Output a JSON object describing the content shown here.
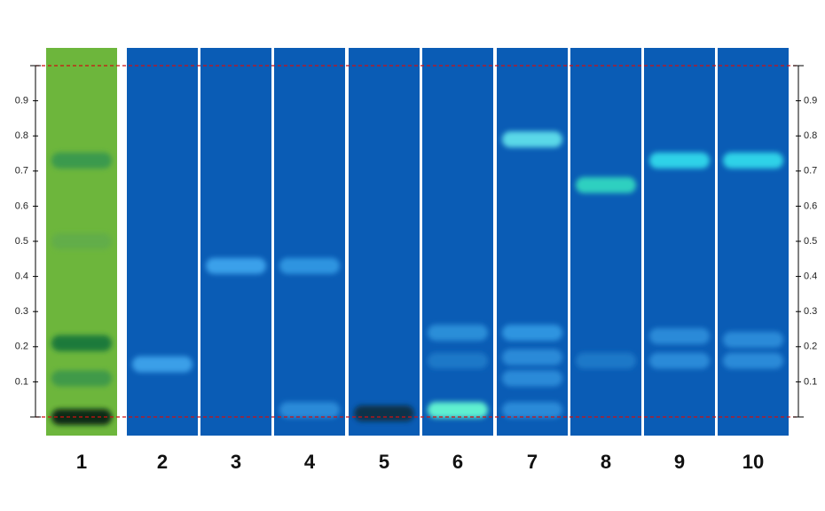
{
  "plate": {
    "ylim": [
      0,
      1
    ],
    "ticks": [
      0.1,
      0.2,
      0.3,
      0.4,
      0.5,
      0.6,
      0.7,
      0.8,
      0.9
    ],
    "lanes": [
      {
        "label": "1",
        "color": "#6db63c",
        "bands": [
          {
            "rf": 0.0,
            "color": "#0b2a12"
          },
          {
            "rf": 0.11,
            "color": "#3f9a4a"
          },
          {
            "rf": 0.21,
            "color": "#1a7a3a"
          },
          {
            "rf": 0.5,
            "color": "#62ad4a"
          },
          {
            "rf": 0.73,
            "color": "#3a9a4e"
          }
        ]
      },
      {
        "label": "2",
        "color": "#0a5cb5",
        "bands": [
          {
            "rf": 0.15,
            "color": "#3a9fe8"
          }
        ]
      },
      {
        "label": "3",
        "color": "#0a5cb5",
        "bands": [
          {
            "rf": 0.43,
            "color": "#3aa0ea"
          }
        ]
      },
      {
        "label": "4",
        "color": "#0a5cb5",
        "bands": [
          {
            "rf": 0.43,
            "color": "#2f94e0"
          },
          {
            "rf": 0.02,
            "color": "#2a8ad8"
          }
        ]
      },
      {
        "label": "5",
        "color": "#0a5cb5",
        "bands": [
          {
            "rf": 0.01,
            "color": "#10304a"
          }
        ]
      },
      {
        "label": "6",
        "color": "#0a5cb5",
        "bands": [
          {
            "rf": 0.02,
            "color": "#5ff0d0"
          },
          {
            "rf": 0.16,
            "color": "#1f78c8"
          },
          {
            "rf": 0.24,
            "color": "#2a8ed8"
          }
        ]
      },
      {
        "label": "7",
        "color": "#0a5cb5",
        "bands": [
          {
            "rf": 0.02,
            "color": "#2a8ad8"
          },
          {
            "rf": 0.11,
            "color": "#2a8ad8"
          },
          {
            "rf": 0.17,
            "color": "#2a8ad8"
          },
          {
            "rf": 0.24,
            "color": "#2f94e0"
          },
          {
            "rf": 0.79,
            "color": "#5ad8e8"
          }
        ]
      },
      {
        "label": "8",
        "color": "#0a5cb5",
        "bands": [
          {
            "rf": 0.16,
            "color": "#1f78c8"
          },
          {
            "rf": 0.66,
            "color": "#2fd0c0"
          }
        ]
      },
      {
        "label": "9",
        "color": "#0a5cb5",
        "bands": [
          {
            "rf": 0.16,
            "color": "#2a8ad8"
          },
          {
            "rf": 0.23,
            "color": "#2a8ad8"
          },
          {
            "rf": 0.73,
            "color": "#2fd2e8"
          }
        ]
      },
      {
        "label": "10",
        "color": "#0a5cb5",
        "bands": [
          {
            "rf": 0.16,
            "color": "#2a8ad8"
          },
          {
            "rf": 0.22,
            "color": "#2a8ad8"
          },
          {
            "rf": 0.73,
            "color": "#2fd2e8"
          }
        ]
      }
    ]
  }
}
